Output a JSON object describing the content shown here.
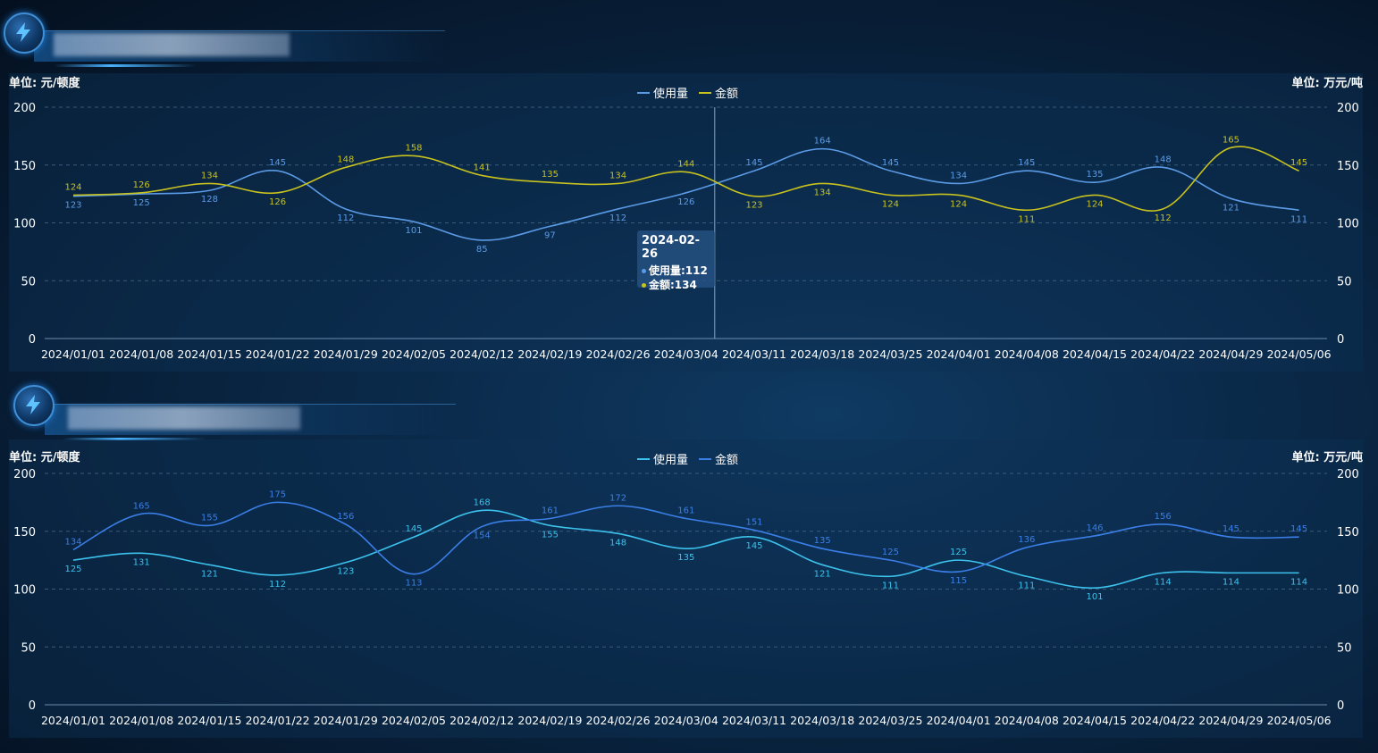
{
  "panels": [
    {
      "title_placeholder": "",
      "unit_left": "单位: 元/顿度",
      "unit_right": "单位: 万元/吨",
      "legend": [
        {
          "label": "使用量",
          "color": "#5b9be6"
        },
        {
          "label": "金额",
          "color": "#c8c21e"
        }
      ]
    },
    {
      "title_placeholder": "",
      "unit_left": "单位: 元/顿度",
      "unit_right": "单位: 万元/吨",
      "legend": [
        {
          "label": "使用量",
          "color": "#3cc2ec"
        },
        {
          "label": "金额",
          "color": "#3b7ee6"
        }
      ]
    }
  ],
  "tooltip": {
    "date": "2024-02-26",
    "row1": "使用量:112",
    "row2": "金额:134"
  },
  "chart_data": [
    {
      "type": "line",
      "categories": [
        "2024/01/01",
        "2024/01/08",
        "2024/01/15",
        "2024/01/22",
        "2024/01/29",
        "2024/02/05",
        "2024/02/12",
        "2024/02/19",
        "2024/02/26",
        "2024/03/04",
        "2024/03/11",
        "2024/03/18",
        "2024/03/25",
        "2024/04/01",
        "2024/04/08",
        "2024/04/15",
        "2024/04/22",
        "2024/04/29",
        "2024/05/06"
      ],
      "series": [
        {
          "name": "使用量",
          "color": "#5b9be6",
          "values": [
            123,
            125,
            128,
            145,
            112,
            101,
            85,
            97,
            112,
            126,
            145,
            164,
            145,
            134,
            145,
            135,
            148,
            121,
            111
          ]
        },
        {
          "name": "金额",
          "color": "#c8c21e",
          "values": [
            124,
            126,
            134,
            126,
            148,
            158,
            141,
            135,
            134,
            144,
            123,
            134,
            124,
            124,
            111,
            124,
            112,
            165,
            145
          ]
        }
      ],
      "ylim": [
        0,
        200
      ],
      "yticks": [
        0,
        50,
        100,
        150,
        200
      ],
      "highlight_index": 8
    },
    {
      "type": "line",
      "categories": [
        "2024/01/01",
        "2024/01/08",
        "2024/01/15",
        "2024/01/22",
        "2024/01/29",
        "2024/02/05",
        "2024/02/12",
        "2024/02/19",
        "2024/02/26",
        "2024/03/04",
        "2024/03/11",
        "2024/03/18",
        "2024/03/25",
        "2024/04/01",
        "2024/04/08",
        "2024/04/15",
        "2024/04/22",
        "2024/04/29",
        "2024/05/06"
      ],
      "series": [
        {
          "name": "使用量",
          "color": "#3cc2ec",
          "values": [
            125,
            131,
            121,
            112,
            123,
            145,
            168,
            155,
            148,
            135,
            145,
            121,
            111,
            125,
            111,
            101,
            114,
            114,
            114
          ]
        },
        {
          "name": "金额",
          "color": "#3b7ee6",
          "values": [
            134,
            165,
            155,
            175,
            156,
            113,
            154,
            161,
            172,
            161,
            151,
            135,
            125,
            115,
            136,
            146,
            156,
            145,
            145
          ]
        }
      ],
      "ylim": [
        0,
        200
      ],
      "yticks": [
        0,
        50,
        100,
        150,
        200
      ]
    }
  ]
}
